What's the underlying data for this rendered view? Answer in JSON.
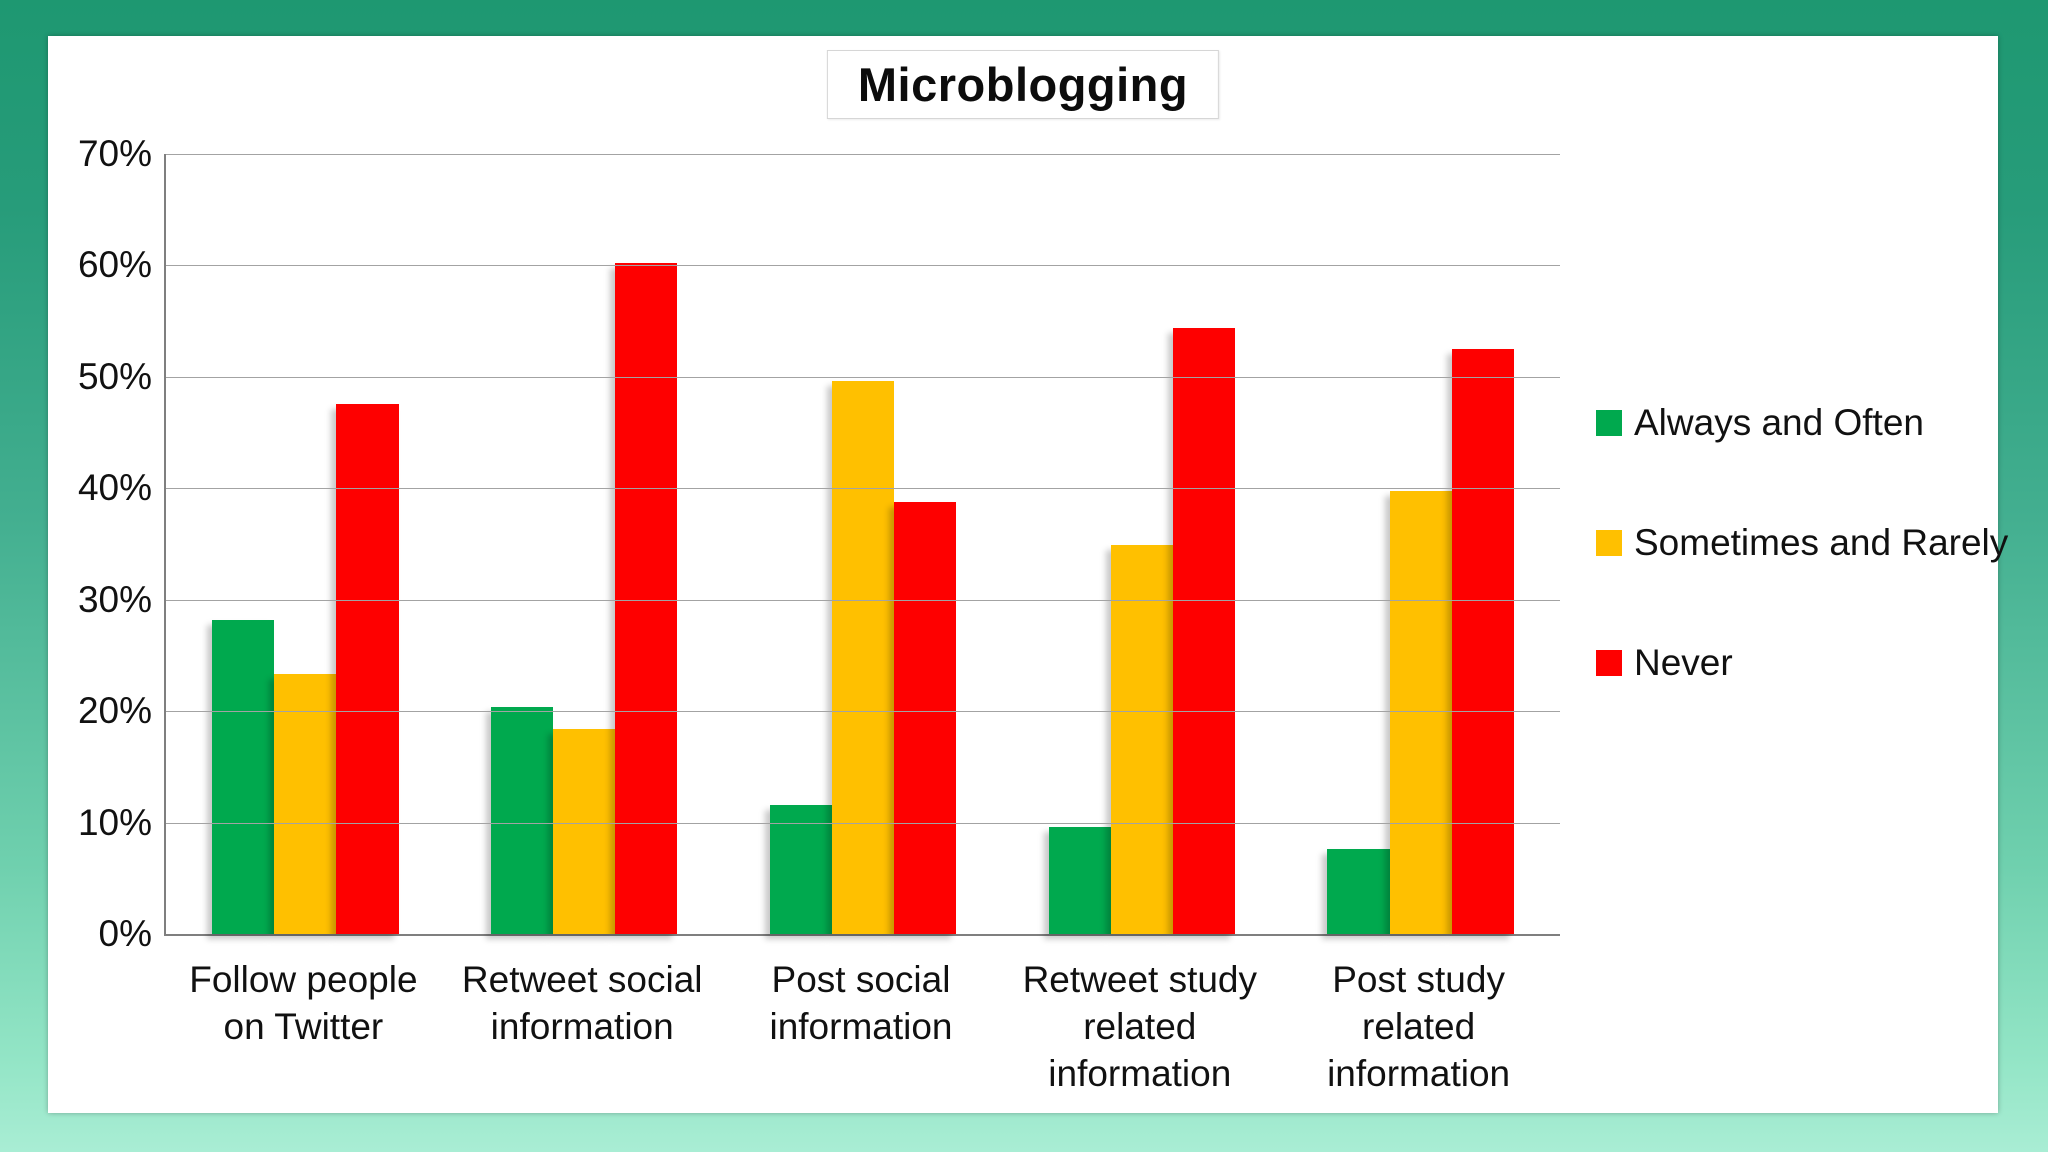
{
  "title": "Microblogging",
  "chart_data": {
    "type": "bar",
    "title": "Microblogging",
    "categories": [
      "Follow people on Twitter",
      "Retweet  social information",
      "Post social information",
      "Retweet study related information",
      "Post study related information"
    ],
    "series": [
      {
        "name": "Always and Often",
        "color": "#00A94E",
        "values": [
          28.2,
          20.4,
          11.6,
          9.6,
          7.6
        ]
      },
      {
        "name": "Sometimes and Rarely",
        "color": "#FFC000",
        "values": [
          23.3,
          18.4,
          49.6,
          34.9,
          39.8
        ]
      },
      {
        "name": "Never",
        "color": "#FE0000",
        "values": [
          47.6,
          60.2,
          38.8,
          54.4,
          52.5
        ]
      }
    ],
    "ylabel": "",
    "xlabel": "",
    "ylim": [
      0,
      70
    ],
    "y_ticks": [
      "70%",
      "60%",
      "50%",
      "40%",
      "30%",
      "20%",
      "10%",
      "0%"
    ],
    "grid": true,
    "legend_position": "right"
  },
  "frame": {
    "background_top_color": "#1E9871",
    "background_bottom_color": "#A9EDD4",
    "panel_color": "#FFFFFF",
    "gridline_color": "#A3A3A3",
    "axis_color": "#7F7F7F"
  }
}
